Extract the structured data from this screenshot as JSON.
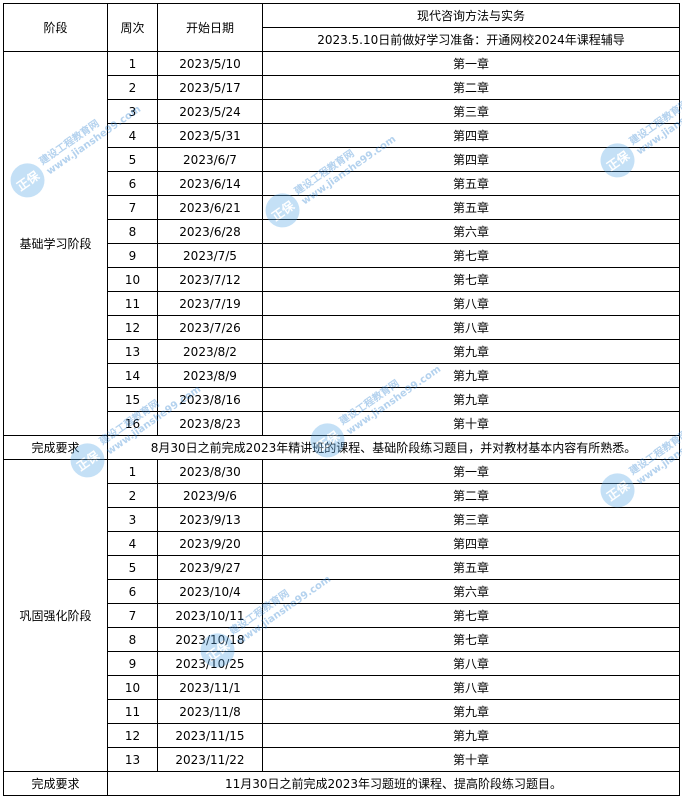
{
  "header": {
    "stage": "阶段",
    "week": "周次",
    "start_date": "开始日期",
    "subject": "现代咨询方法与实务",
    "prep_note": "2023.5.10日前做好学习准备：开通网校2024年课程辅导"
  },
  "stages": [
    {
      "name": "基础学习阶段",
      "rows": [
        {
          "week": "1",
          "date": "2023/5/10",
          "chapter": "第一章"
        },
        {
          "week": "2",
          "date": "2023/5/17",
          "chapter": "第二章"
        },
        {
          "week": "3",
          "date": "2023/5/24",
          "chapter": "第三章"
        },
        {
          "week": "4",
          "date": "2023/5/31",
          "chapter": "第四章"
        },
        {
          "week": "5",
          "date": "2023/6/7",
          "chapter": "第四章"
        },
        {
          "week": "6",
          "date": "2023/6/14",
          "chapter": "第五章"
        },
        {
          "week": "7",
          "date": "2023/6/21",
          "chapter": "第五章"
        },
        {
          "week": "8",
          "date": "2023/6/28",
          "chapter": "第六章"
        },
        {
          "week": "9",
          "date": "2023/7/5",
          "chapter": "第七章"
        },
        {
          "week": "10",
          "date": "2023/7/12",
          "chapter": "第七章"
        },
        {
          "week": "11",
          "date": "2023/7/19",
          "chapter": "第八章"
        },
        {
          "week": "12",
          "date": "2023/7/26",
          "chapter": "第八章"
        },
        {
          "week": "13",
          "date": "2023/8/2",
          "chapter": "第九章"
        },
        {
          "week": "14",
          "date": "2023/8/9",
          "chapter": "第九章"
        },
        {
          "week": "15",
          "date": "2023/8/16",
          "chapter": "第九章"
        },
        {
          "week": "16",
          "date": "2023/8/23",
          "chapter": "第十章"
        }
      ],
      "req_label": "完成要求",
      "req_text": "8月30日之前完成2023年精讲班的课程、基础阶段练习题目，并对教材基本内容有所熟悉。"
    },
    {
      "name": "巩固强化阶段",
      "rows": [
        {
          "week": "1",
          "date": "2023/8/30",
          "chapter": "第一章"
        },
        {
          "week": "2",
          "date": "2023/9/6",
          "chapter": "第二章"
        },
        {
          "week": "3",
          "date": "2023/9/13",
          "chapter": "第三章"
        },
        {
          "week": "4",
          "date": "2023/9/20",
          "chapter": "第四章"
        },
        {
          "week": "5",
          "date": "2023/9/27",
          "chapter": "第五章"
        },
        {
          "week": "6",
          "date": "2023/10/4",
          "chapter": "第六章"
        },
        {
          "week": "7",
          "date": "2023/10/11",
          "chapter": "第七章"
        },
        {
          "week": "8",
          "date": "2023/10/18",
          "chapter": "第七章"
        },
        {
          "week": "9",
          "date": "2023/10/25",
          "chapter": "第八章"
        },
        {
          "week": "10",
          "date": "2023/11/1",
          "chapter": "第八章"
        },
        {
          "week": "11",
          "date": "2023/11/8",
          "chapter": "第九章"
        },
        {
          "week": "12",
          "date": "2023/11/15",
          "chapter": "第九章"
        },
        {
          "week": "13",
          "date": "2023/11/22",
          "chapter": "第十章"
        }
      ],
      "req_label": "完成要求",
      "req_text": "11月30日之前完成2023年习题班的课程、提高阶段练习题目。"
    }
  ],
  "watermark": {
    "logo": "正保",
    "name": "建设工程教育网",
    "url": "www.jianshe99.com",
    "color": "#2a7fd0"
  }
}
